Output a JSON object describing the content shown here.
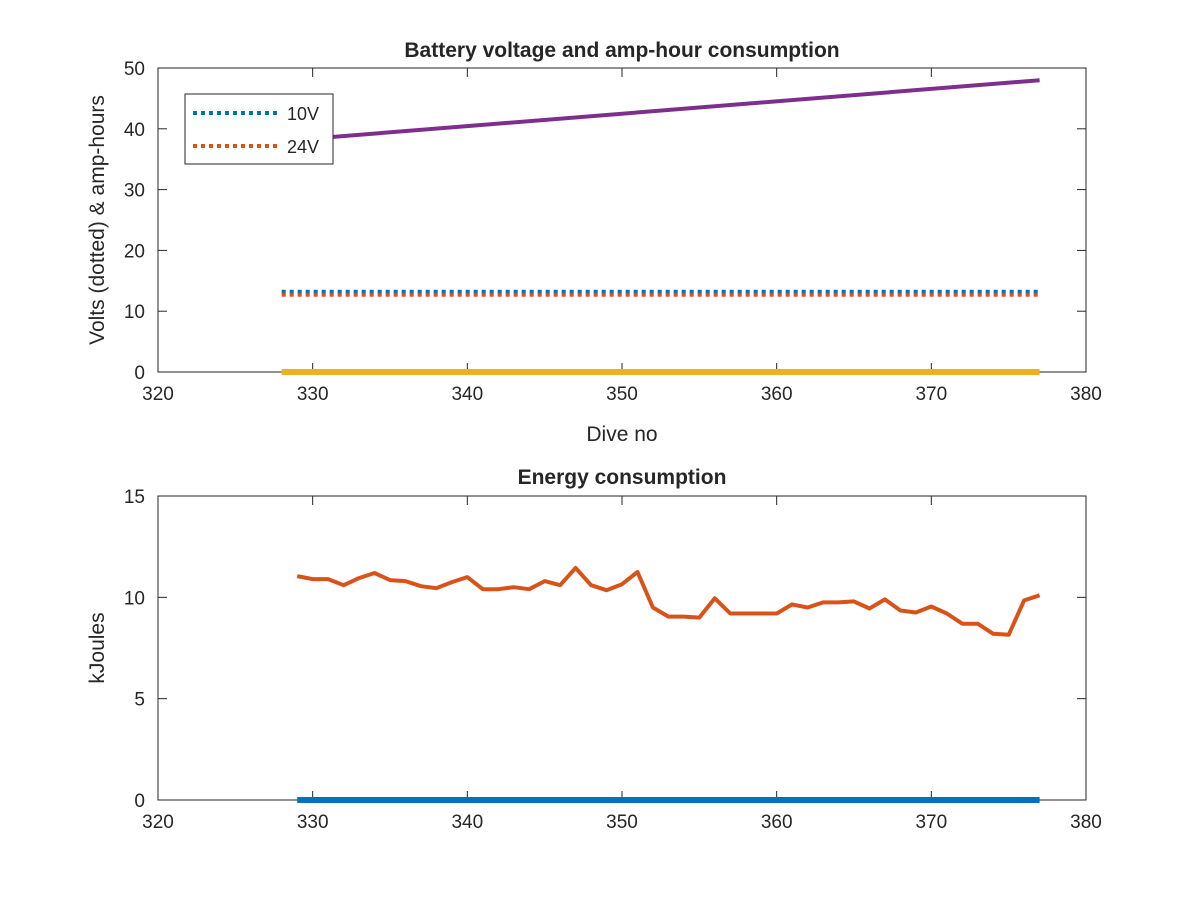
{
  "chart_data": [
    {
      "type": "line",
      "title": "Battery voltage and amp-hour consumption",
      "xlabel": "Dive no",
      "ylabel": "Volts (dotted) & amp-hours",
      "xlim": [
        320,
        380
      ],
      "ylim": [
        0,
        50
      ],
      "xticks": [
        320,
        330,
        340,
        350,
        360,
        370,
        380
      ],
      "yticks": [
        0,
        10,
        20,
        30,
        40,
        50
      ],
      "grid": false,
      "legend_position": "top-left",
      "series": [
        {
          "name": "10V",
          "style": "dotted",
          "color": "#0072BD",
          "x": [
            328,
            377
          ],
          "y": [
            13.2,
            13.2
          ]
        },
        {
          "name": "24V",
          "style": "dotted",
          "color": "#D95319",
          "x": [
            328,
            377
          ],
          "y": [
            12.7,
            12.7
          ]
        },
        {
          "style": "solid",
          "color": "#7E2F8E",
          "x": [
            328,
            377
          ],
          "y": [
            38,
            48
          ]
        },
        {
          "style": "solid",
          "color": "#EDB120",
          "x": [
            328,
            377
          ],
          "y": [
            0,
            0
          ]
        }
      ]
    },
    {
      "type": "line",
      "title": "Energy consumption",
      "xlabel": "",
      "ylabel": "kJoules",
      "xlim": [
        320,
        380
      ],
      "ylim": [
        0,
        15
      ],
      "xticks": [
        320,
        330,
        340,
        350,
        360,
        370,
        380
      ],
      "yticks": [
        0,
        5,
        10,
        15
      ],
      "grid": false,
      "series": [
        {
          "style": "solid",
          "color": "#0072BD",
          "x": [
            329,
            377
          ],
          "y": [
            0,
            0
          ]
        },
        {
          "style": "solid",
          "color": "#D95319",
          "x": [
            329,
            330,
            331,
            332,
            333,
            334,
            335,
            336,
            337,
            338,
            339,
            340,
            341,
            342,
            343,
            344,
            345,
            346,
            347,
            348,
            349,
            350,
            351,
            352,
            353,
            354,
            355,
            356,
            357,
            358,
            359,
            360,
            361,
            362,
            363,
            364,
            365,
            366,
            367,
            368,
            369,
            370,
            371,
            372,
            373,
            374,
            375,
            376,
            377
          ],
          "y": [
            11.05,
            10.9,
            10.9,
            10.6,
            10.95,
            11.2,
            10.85,
            10.8,
            10.55,
            10.45,
            10.75,
            11.0,
            10.4,
            10.4,
            10.5,
            10.4,
            10.8,
            10.6,
            11.45,
            10.6,
            10.35,
            10.65,
            11.25,
            9.5,
            9.05,
            9.05,
            9.0,
            9.95,
            9.2,
            9.2,
            9.2,
            9.2,
            9.65,
            9.5,
            9.75,
            9.75,
            9.8,
            9.45,
            9.9,
            9.35,
            9.25,
            9.55,
            9.2,
            8.7,
            8.7,
            8.2,
            8.15,
            9.85,
            10.1
          ]
        }
      ]
    }
  ]
}
